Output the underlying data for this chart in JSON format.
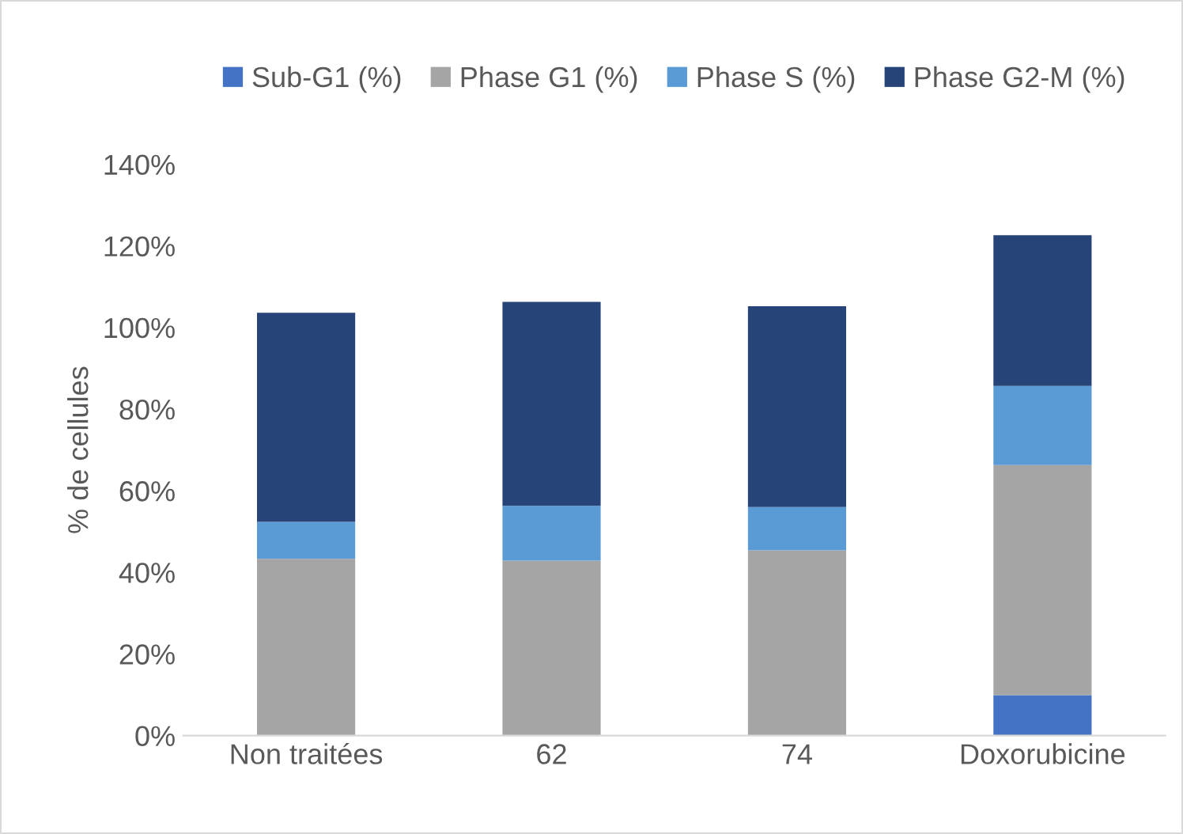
{
  "chart_data": {
    "type": "bar",
    "stacked": true,
    "ylabel": "% de cellules",
    "categories": [
      "Non traitées",
      "62",
      "74",
      "Doxorubicine"
    ],
    "series": [
      {
        "name": "Sub-G1 (%)",
        "color": "#4472c4",
        "values": [
          0,
          0,
          0,
          9.9
        ]
      },
      {
        "name": "Phase G1 (%)",
        "color": "#a5a5a5",
        "values": [
          43.3,
          42.9,
          45.4,
          56.4
        ]
      },
      {
        "name": "Phase S (%)",
        "color": "#5b9bd5",
        "values": [
          9.1,
          13.4,
          10.6,
          19.4
        ]
      },
      {
        "name": "Phase G2-M (%)",
        "color": "#264478",
        "values": [
          51.2,
          50.0,
          49.2,
          36.9
        ]
      }
    ],
    "ylim": [
      0,
      140
    ],
    "yticks": [
      {
        "value": 0,
        "label": "0%"
      },
      {
        "value": 20,
        "label": "20%"
      },
      {
        "value": 40,
        "label": "40%"
      },
      {
        "value": 60,
        "label": "60%"
      },
      {
        "value": 80,
        "label": "80%"
      },
      {
        "value": 100,
        "label": "100%"
      },
      {
        "value": 120,
        "label": "120%"
      },
      {
        "value": 140,
        "label": "140%"
      }
    ],
    "grid": false,
    "legend": "top"
  }
}
